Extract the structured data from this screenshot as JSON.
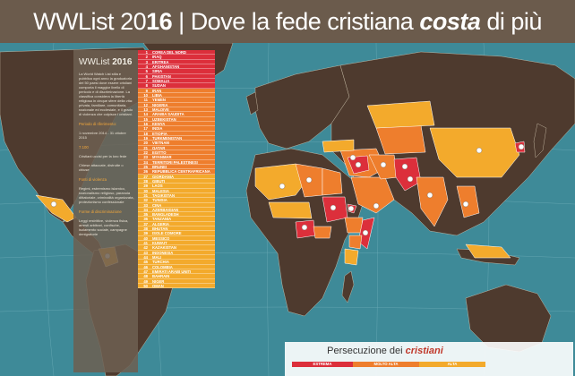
{
  "header": {
    "brand_plain": "WWList ",
    "brand_year_a": "20",
    "brand_year_b": "1",
    "brand_year_c": "6",
    "separator": "|",
    "title_plain": "Dove la fede cristiana ",
    "title_emph": "costa",
    "title_end": " di più"
  },
  "panel": {
    "title_plain": "WWList ",
    "title_year": "2016",
    "intro": "La World Watch List stila e pubblica ogni anno la graduatoria dei 50 paesi dove essere cristiani comporta il maggior livello di pericolo e di discriminazione. La classifica considera la libertà religiosa in cinque sfere della vita: privata, familiare, comunitaria, nazionale ed ecclesiale, e il grado di violenza che colpisce i cristiani.",
    "period_head": "Periodo di riferimento:",
    "period": "1 novembre 2014 - 31 ottobre 2015",
    "count": "7.100",
    "count_text": "Cristiani uccisi per la loro fede",
    "churches_text": "Chiese attaccate, distrutte o chiuse",
    "sources_head": "Fonti di violenza",
    "sources": "Regimi, estremismo islamico, nazionalismo religioso, paranoia dittatoriale, criminalità organizzata, protezionismo confessionale",
    "forms_head": "Forme di discriminazione",
    "forms": "Leggi restrittive, violenza fisica, arresti arbitrari, confische, isolamento sociale, campagne denigratorie"
  },
  "countries": [
    {
      "n": "1",
      "name": "COREA DEL NORD",
      "level": "estrema"
    },
    {
      "n": "2",
      "name": "IRAQ",
      "level": "estrema"
    },
    {
      "n": "3",
      "name": "ERITREA",
      "level": "estrema"
    },
    {
      "n": "4",
      "name": "AFGHANISTAN",
      "level": "estrema"
    },
    {
      "n": "5",
      "name": "SIRIA",
      "level": "estrema"
    },
    {
      "n": "6",
      "name": "PAKISTAN",
      "level": "estrema"
    },
    {
      "n": "7",
      "name": "SOMALIA",
      "level": "estrema"
    },
    {
      "n": "8",
      "name": "SUDAN",
      "level": "estrema"
    },
    {
      "n": "9",
      "name": "IRAN",
      "level": "molto alta"
    },
    {
      "n": "10",
      "name": "LIBIA",
      "level": "molto alta"
    },
    {
      "n": "11",
      "name": "YEMEN",
      "level": "molto alta"
    },
    {
      "n": "12",
      "name": "NIGERIA",
      "level": "molto alta"
    },
    {
      "n": "13",
      "name": "MALDIVE",
      "level": "molto alta"
    },
    {
      "n": "14",
      "name": "ARABIA SAUDITA",
      "level": "molto alta"
    },
    {
      "n": "15",
      "name": "UZBEKISTAN",
      "level": "molto alta"
    },
    {
      "n": "16",
      "name": "KENYA",
      "level": "molto alta"
    },
    {
      "n": "17",
      "name": "INDIA",
      "level": "molto alta"
    },
    {
      "n": "18",
      "name": "ETIOPIA",
      "level": "molto alta"
    },
    {
      "n": "19",
      "name": "TURKMENISTAN",
      "level": "molto alta"
    },
    {
      "n": "20",
      "name": "VIETNAM",
      "level": "molto alta"
    },
    {
      "n": "21",
      "name": "QATAR",
      "level": "molto alta"
    },
    {
      "n": "22",
      "name": "EGITTO",
      "level": "molto alta"
    },
    {
      "n": "23",
      "name": "MYANMAR",
      "level": "molto alta"
    },
    {
      "n": "24",
      "name": "TERRITORI PALESTINESI",
      "level": "molto alta"
    },
    {
      "n": "25",
      "name": "BRUNEI",
      "level": "molto alta"
    },
    {
      "n": "26",
      "name": "REPUBBLICA CENTRAFRICANA",
      "level": "molto alta"
    },
    {
      "n": "27",
      "name": "GIORDANIA",
      "level": "alta"
    },
    {
      "n": "28",
      "name": "GIBUTI",
      "level": "alta"
    },
    {
      "n": "29",
      "name": "LAOS",
      "level": "alta"
    },
    {
      "n": "30",
      "name": "MALESIA",
      "level": "alta"
    },
    {
      "n": "31",
      "name": "TAGIKISTAN",
      "level": "alta"
    },
    {
      "n": "32",
      "name": "TUNISIA",
      "level": "alta"
    },
    {
      "n": "33",
      "name": "CINA",
      "level": "alta"
    },
    {
      "n": "34",
      "name": "AZERBAIGIAN",
      "level": "alta"
    },
    {
      "n": "35",
      "name": "BANGLADESH",
      "level": "alta"
    },
    {
      "n": "36",
      "name": "TANZANIA",
      "level": "alta"
    },
    {
      "n": "37",
      "name": "ALGERIA",
      "level": "alta"
    },
    {
      "n": "38",
      "name": "BHUTAN",
      "level": "alta"
    },
    {
      "n": "39",
      "name": "ISOLE COMORE",
      "level": "alta"
    },
    {
      "n": "40",
      "name": "MESSICO",
      "level": "alta"
    },
    {
      "n": "41",
      "name": "KUWAIT",
      "level": "alta"
    },
    {
      "n": "42",
      "name": "KAZAKISTAN",
      "level": "alta"
    },
    {
      "n": "43",
      "name": "INDONESIA",
      "level": "alta"
    },
    {
      "n": "44",
      "name": "MALI",
      "level": "alta"
    },
    {
      "n": "45",
      "name": "TURCHIA",
      "level": "alta"
    },
    {
      "n": "46",
      "name": "COLOMBIA",
      "level": "alta"
    },
    {
      "n": "47",
      "name": "EMIRATI ARABI UNITI",
      "level": "alta"
    },
    {
      "n": "48",
      "name": "BAHRAIN",
      "level": "alta"
    },
    {
      "n": "49",
      "name": "NIGER",
      "level": "alta"
    },
    {
      "n": "50",
      "name": "OMAN",
      "level": "alta"
    }
  ],
  "legend": {
    "title_plain": "Persecuzione dei ",
    "title_emph": "cristiani",
    "estrema": "ESTREMA",
    "molto_alta": "MOLTO ALTA",
    "alta": "ALTA"
  },
  "colors": {
    "estrema": "#dc2f3b",
    "molto_alta": "#ee7e2d",
    "alta": "#f3aa2c",
    "land": "#4e3a2e",
    "ocean": "#3e8a98",
    "header": "#6b5b4c"
  }
}
